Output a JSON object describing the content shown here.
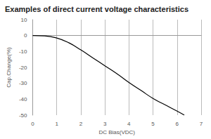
{
  "chart_data": {
    "type": "line",
    "title": "Examples of direct current voltage characteristics",
    "x_label": "DC Bias(VDC)",
    "y_label": "Cap.Change(%)",
    "x": [
      0,
      0.5,
      1,
      1.5,
      2,
      2.5,
      3,
      3.5,
      4,
      4.5,
      5,
      5.5,
      6,
      6.3
    ],
    "values": [
      0,
      -0.2,
      -1.5,
      -4.5,
      -9,
      -14,
      -19,
      -24,
      -29.5,
      -34.5,
      -39.5,
      -43.5,
      -47.5,
      -50
    ],
    "color": "#000000",
    "xlim": [
      0,
      7
    ],
    "xticks": [
      0,
      1,
      2,
      3,
      4,
      5,
      6,
      7
    ],
    "ylim": [
      -50,
      10
    ],
    "yticks": [
      -50,
      -40,
      -30,
      -20,
      -10,
      0,
      10
    ],
    "grid": true
  }
}
